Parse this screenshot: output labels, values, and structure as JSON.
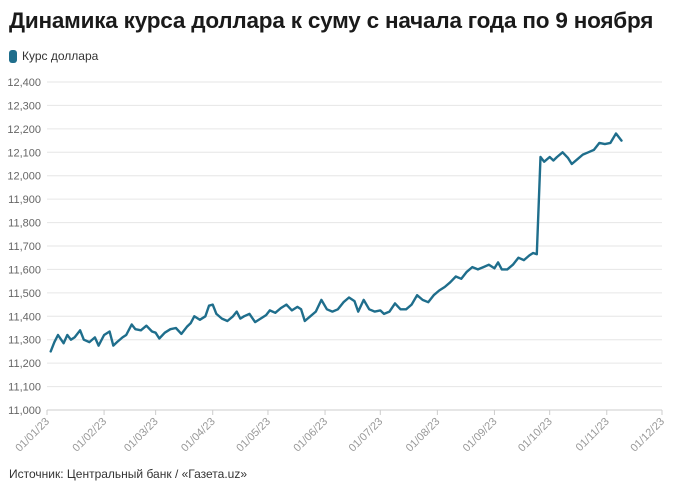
{
  "header": {
    "title": "Динамика курса доллара к суму с начала года по 9 ноября"
  },
  "footer": {
    "source": "Источник: Центральный банк / «Газета.uz»"
  },
  "colors": {
    "series": "#1f6e8c",
    "grid": "#e6e6e6",
    "axis": "#cccccc"
  },
  "chart_data": {
    "type": "line",
    "title": "Динамика курса доллара к суму с начала года по 9 ноября",
    "xlabel": "",
    "ylabel": "",
    "x_ticks": [
      "01/01/23",
      "01/02/23",
      "01/03/23",
      "01/04/23",
      "01/05/23",
      "01/06/23",
      "01/07/23",
      "01/08/23",
      "01/09/23",
      "01/10/23",
      "01/11/23",
      "01/12/23"
    ],
    "y_ticks": [
      "11,000",
      "11,100",
      "11,200",
      "11,300",
      "11,400",
      "11,500",
      "11,600",
      "11,700",
      "11,800",
      "11,900",
      "12,000",
      "12,100",
      "12,200",
      "12,300",
      "12,400"
    ],
    "ylim": [
      11000,
      12400
    ],
    "xlim": [
      "2023-01-01",
      "2023-12-01"
    ],
    "grid": true,
    "legend_position": "top-left",
    "series": [
      {
        "name": "Курс доллара",
        "points": [
          [
            "2023-01-03",
            11250
          ],
          [
            "2023-01-05",
            11290
          ],
          [
            "2023-01-07",
            11320
          ],
          [
            "2023-01-10",
            11285
          ],
          [
            "2023-01-12",
            11320
          ],
          [
            "2023-01-14",
            11300
          ],
          [
            "2023-01-16",
            11310
          ],
          [
            "2023-01-19",
            11340
          ],
          [
            "2023-01-21",
            11300
          ],
          [
            "2023-01-24",
            11290
          ],
          [
            "2023-01-27",
            11310
          ],
          [
            "2023-01-29",
            11275
          ],
          [
            "2023-02-01",
            11320
          ],
          [
            "2023-02-04",
            11335
          ],
          [
            "2023-02-06",
            11275
          ],
          [
            "2023-02-08",
            11290
          ],
          [
            "2023-02-11",
            11310
          ],
          [
            "2023-02-13",
            11320
          ],
          [
            "2023-02-16",
            11365
          ],
          [
            "2023-02-18",
            11345
          ],
          [
            "2023-02-21",
            11340
          ],
          [
            "2023-02-24",
            11360
          ],
          [
            "2023-02-27",
            11335
          ],
          [
            "2023-03-01",
            11330
          ],
          [
            "2023-03-03",
            11305
          ],
          [
            "2023-03-06",
            11330
          ],
          [
            "2023-03-09",
            11345
          ],
          [
            "2023-03-12",
            11350
          ],
          [
            "2023-03-15",
            11325
          ],
          [
            "2023-03-18",
            11355
          ],
          [
            "2023-03-20",
            11370
          ],
          [
            "2023-03-22",
            11400
          ],
          [
            "2023-03-25",
            11385
          ],
          [
            "2023-03-28",
            11400
          ],
          [
            "2023-03-30",
            11445
          ],
          [
            "2023-04-01",
            11450
          ],
          [
            "2023-04-03",
            11410
          ],
          [
            "2023-04-06",
            11390
          ],
          [
            "2023-04-09",
            11380
          ],
          [
            "2023-04-12",
            11400
          ],
          [
            "2023-04-14",
            11420
          ],
          [
            "2023-04-16",
            11390
          ],
          [
            "2023-04-18",
            11400
          ],
          [
            "2023-04-21",
            11410
          ],
          [
            "2023-04-24",
            11375
          ],
          [
            "2023-04-27",
            11390
          ],
          [
            "2023-04-30",
            11405
          ],
          [
            "2023-05-02",
            11425
          ],
          [
            "2023-05-05",
            11415
          ],
          [
            "2023-05-08",
            11435
          ],
          [
            "2023-05-11",
            11450
          ],
          [
            "2023-05-14",
            11425
          ],
          [
            "2023-05-17",
            11440
          ],
          [
            "2023-05-19",
            11430
          ],
          [
            "2023-05-21",
            11380
          ],
          [
            "2023-05-24",
            11400
          ],
          [
            "2023-05-27",
            11420
          ],
          [
            "2023-05-30",
            11470
          ],
          [
            "2023-06-02",
            11430
          ],
          [
            "2023-06-05",
            11420
          ],
          [
            "2023-06-08",
            11430
          ],
          [
            "2023-06-11",
            11460
          ],
          [
            "2023-06-14",
            11480
          ],
          [
            "2023-06-17",
            11465
          ],
          [
            "2023-06-19",
            11420
          ],
          [
            "2023-06-22",
            11470
          ],
          [
            "2023-06-25",
            11430
          ],
          [
            "2023-06-28",
            11420
          ],
          [
            "2023-07-01",
            11425
          ],
          [
            "2023-07-03",
            11410
          ],
          [
            "2023-07-06",
            11420
          ],
          [
            "2023-07-09",
            11455
          ],
          [
            "2023-07-12",
            11430
          ],
          [
            "2023-07-15",
            11430
          ],
          [
            "2023-07-18",
            11450
          ],
          [
            "2023-07-21",
            11490
          ],
          [
            "2023-07-24",
            11470
          ],
          [
            "2023-07-27",
            11460
          ],
          [
            "2023-07-30",
            11490
          ],
          [
            "2023-08-02",
            11510
          ],
          [
            "2023-08-05",
            11525
          ],
          [
            "2023-08-08",
            11545
          ],
          [
            "2023-08-11",
            11570
          ],
          [
            "2023-08-14",
            11560
          ],
          [
            "2023-08-17",
            11590
          ],
          [
            "2023-08-20",
            11610
          ],
          [
            "2023-08-23",
            11600
          ],
          [
            "2023-08-26",
            11610
          ],
          [
            "2023-08-29",
            11620
          ],
          [
            "2023-09-01",
            11605
          ],
          [
            "2023-09-03",
            11630
          ],
          [
            "2023-09-05",
            11600
          ],
          [
            "2023-09-08",
            11600
          ],
          [
            "2023-09-11",
            11620
          ],
          [
            "2023-09-14",
            11650
          ],
          [
            "2023-09-17",
            11640
          ],
          [
            "2023-09-20",
            11660
          ],
          [
            "2023-09-22",
            11670
          ],
          [
            "2023-09-24",
            11665
          ],
          [
            "2023-09-26",
            12080
          ],
          [
            "2023-09-28",
            12060
          ],
          [
            "2023-10-01",
            12080
          ],
          [
            "2023-10-03",
            12065
          ],
          [
            "2023-10-05",
            12080
          ],
          [
            "2023-10-08",
            12100
          ],
          [
            "2023-10-11",
            12075
          ],
          [
            "2023-10-13",
            12050
          ],
          [
            "2023-10-16",
            12070
          ],
          [
            "2023-10-19",
            12090
          ],
          [
            "2023-10-22",
            12100
          ],
          [
            "2023-10-25",
            12110
          ],
          [
            "2023-10-28",
            12140
          ],
          [
            "2023-10-31",
            12135
          ],
          [
            "2023-11-03",
            12140
          ],
          [
            "2023-11-06",
            12180
          ],
          [
            "2023-11-09",
            12150
          ]
        ]
      }
    ]
  }
}
